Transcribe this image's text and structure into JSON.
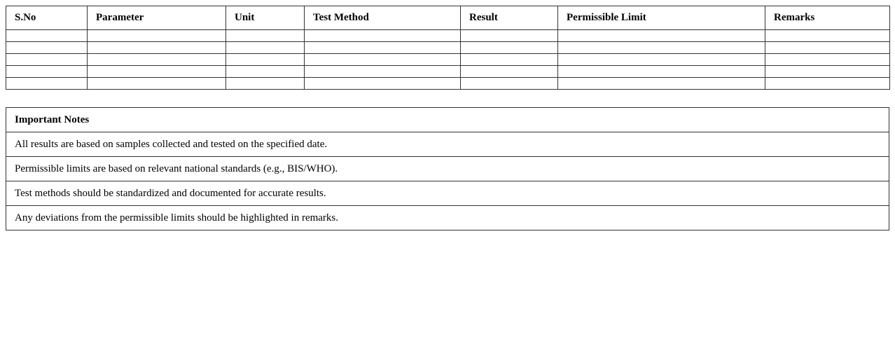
{
  "results_table": {
    "columns": [
      "S.No",
      "Parameter",
      "Unit",
      "Test Method",
      "Result",
      "Permissible Limit",
      "Remarks"
    ],
    "empty_row_count": 5
  },
  "notes": {
    "title": "Important Notes",
    "items": [
      "All results are based on samples collected and tested on the specified date.",
      "Permissible limits are based on relevant national standards (e.g., BIS/WHO).",
      "Test methods should be standardized and documented for accurate results.",
      "Any deviations from the permissible limits should be highlighted in remarks."
    ]
  }
}
